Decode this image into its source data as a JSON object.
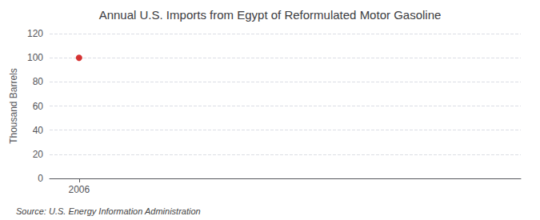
{
  "chart_data": {
    "type": "scatter",
    "title": "Annual U.S. Imports from Egypt of Reformulated Motor Gasoline",
    "ylabel": "Thousand Barrels",
    "annotations": [
      "Source: U.S. Energy Information Administration"
    ],
    "x": [
      2006
    ],
    "values": [
      100
    ],
    "color": "#cc0000",
    "marker": "circle",
    "xlim": [
      2005.4,
      2015
    ],
    "ylim": [
      0,
      120
    ],
    "xticks": [
      2006
    ],
    "yticks": [
      0,
      20,
      40,
      60,
      80,
      100,
      120
    ],
    "grid": true
  }
}
